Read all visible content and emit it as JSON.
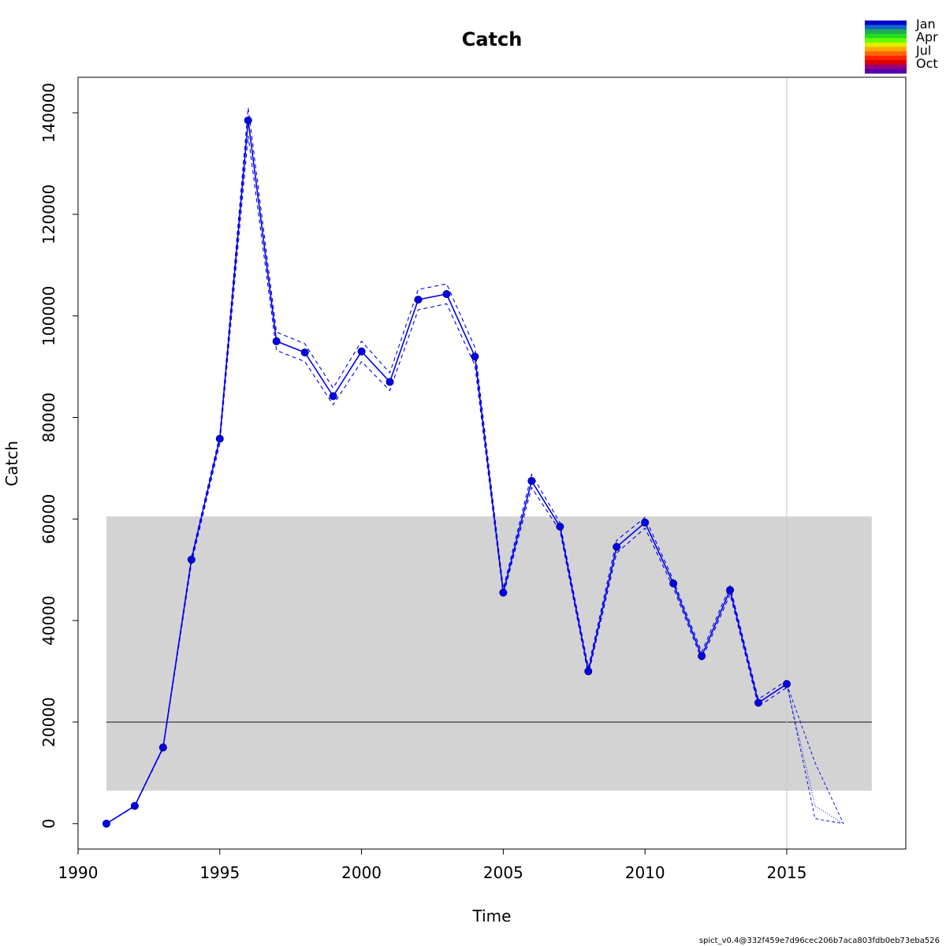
{
  "chart_data": {
    "type": "line",
    "title": "Catch",
    "xlabel": "Time",
    "ylabel": "Catch",
    "xlim": [
      1990,
      2019.2
    ],
    "ylim": [
      -5000,
      147000
    ],
    "x_ticks": [
      1990,
      1995,
      2000,
      2005,
      2010,
      2015
    ],
    "y_ticks": [
      0,
      20000,
      40000,
      60000,
      80000,
      100000,
      120000,
      140000
    ],
    "grid": false,
    "band": {
      "x_range": [
        1991,
        2018
      ],
      "y_range": [
        6500,
        60500
      ]
    },
    "hline": 20000,
    "vline": 2015,
    "series": [
      {
        "role": "estimate",
        "x": [
          1991,
          1992,
          1993,
          1994,
          1995,
          1996,
          1997,
          1998,
          1999,
          2000,
          2001,
          2002,
          2003,
          2004,
          2005,
          2006,
          2007,
          2008,
          2009,
          2010,
          2011,
          2012,
          2013,
          2014,
          2015
        ],
        "values": [
          0,
          3500,
          15000,
          52000,
          75800,
          138500,
          95000,
          92800,
          84200,
          93000,
          87000,
          103200,
          104300,
          92000,
          45500,
          67500,
          58500,
          30000,
          54500,
          59300,
          47300,
          33000,
          46000,
          23800,
          27500
        ]
      },
      {
        "role": "upper",
        "x": [
          1991,
          1992,
          1993,
          1994,
          1995,
          1996,
          1997,
          1998,
          1999,
          2000,
          2001,
          2002,
          2003,
          2004,
          2005,
          2006,
          2007,
          2008,
          2009,
          2010,
          2011,
          2012,
          2013,
          2014,
          2015
        ],
        "values": [
          0,
          3500,
          15000,
          52500,
          76500,
          141000,
          96800,
          94500,
          85800,
          95000,
          88800,
          105200,
          106300,
          93800,
          46300,
          68800,
          59300,
          30800,
          55800,
          60300,
          48000,
          33800,
          46800,
          24500,
          28200
        ]
      },
      {
        "role": "lower",
        "x": [
          1991,
          1992,
          1993,
          1994,
          1995,
          1996,
          1997,
          1998,
          1999,
          2000,
          2001,
          2002,
          2003,
          2004,
          2005,
          2006,
          2007,
          2008,
          2009,
          2010,
          2011,
          2012,
          2013,
          2014,
          2015
        ],
        "values": [
          0,
          3400,
          14800,
          51200,
          74800,
          135500,
          93200,
          91000,
          82500,
          91000,
          85300,
          101200,
          102400,
          90300,
          44900,
          66200,
          57700,
          29300,
          53300,
          58200,
          46500,
          32300,
          45200,
          23100,
          26800
        ]
      },
      {
        "role": "forecast-upper",
        "x": [
          2015,
          2016,
          2017
        ],
        "values": [
          27500,
          12000,
          0
        ]
      },
      {
        "role": "forecast-lower",
        "x": [
          2015,
          2016,
          2017
        ],
        "values": [
          27500,
          1000,
          0
        ]
      },
      {
        "role": "forecast-estimate",
        "x": [
          2015,
          2016,
          2017
        ],
        "values": [
          27500,
          3500,
          0
        ]
      }
    ],
    "colors": {
      "series": "#0000ee",
      "band": "#d3d3d3",
      "hline": "#555555",
      "vline": "#cccccc"
    }
  },
  "legend": {
    "labels": [
      "Jan",
      "Apr",
      "Jul",
      "Oct"
    ],
    "colors": [
      "#0000cc",
      "#1166cc",
      "#22aa55",
      "#22dd22",
      "#66ff00",
      "#ddee00",
      "#ffaa00",
      "#ff6600",
      "#ff2200",
      "#dd0000",
      "#990077",
      "#5500aa"
    ]
  },
  "footer": "spict_v0.4@332f459e7d96cec206b7aca803fdb0eb73eba526"
}
